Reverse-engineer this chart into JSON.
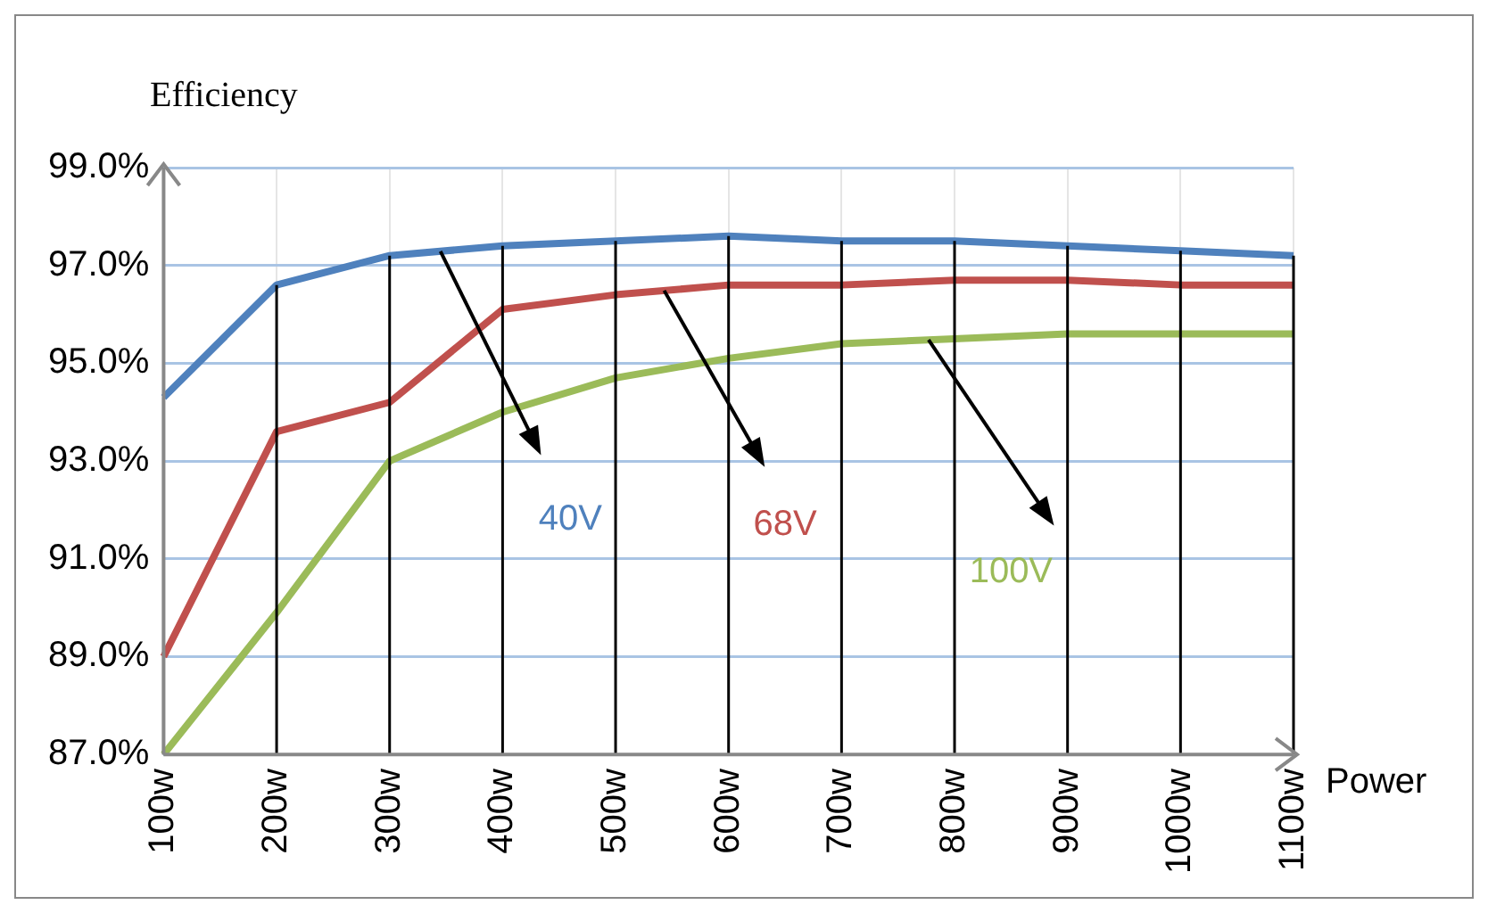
{
  "chart_data": {
    "type": "line",
    "xlabel": "Power",
    "ylabel": "Efficiency",
    "categories": [
      "100w",
      "200w",
      "300w",
      "400w",
      "500w",
      "600w",
      "700w",
      "800w",
      "900w",
      "1000w",
      "1100w"
    ],
    "series": [
      {
        "name": "40V",
        "color": "#4f81bd",
        "values": [
          94.3,
          96.6,
          97.2,
          97.4,
          97.5,
          97.6,
          97.5,
          97.5,
          97.4,
          97.3,
          97.2
        ]
      },
      {
        "name": "68V",
        "color": "#c0504d",
        "values": [
          89.0,
          93.6,
          94.2,
          96.1,
          96.4,
          96.6,
          96.6,
          96.7,
          96.7,
          96.6,
          96.6
        ]
      },
      {
        "name": "100V",
        "color": "#9bbb59",
        "values": [
          87.0,
          89.9,
          93.0,
          94.0,
          94.7,
          95.1,
          95.4,
          95.5,
          95.6,
          95.6,
          95.6
        ]
      }
    ],
    "ylim": [
      87,
      99
    ],
    "yticks": [
      {
        "value": 87,
        "label": "87.0%"
      },
      {
        "value": 89,
        "label": "89.0%"
      },
      {
        "value": 91,
        "label": "91.0%"
      },
      {
        "value": 93,
        "label": "93.0%"
      },
      {
        "value": 95,
        "label": "95.0%"
      },
      {
        "value": 97,
        "label": "97.0%"
      },
      {
        "value": 99,
        "label": "99.0%"
      }
    ],
    "grid": true,
    "legend": false,
    "marker": "none",
    "line_style": "solid"
  }
}
